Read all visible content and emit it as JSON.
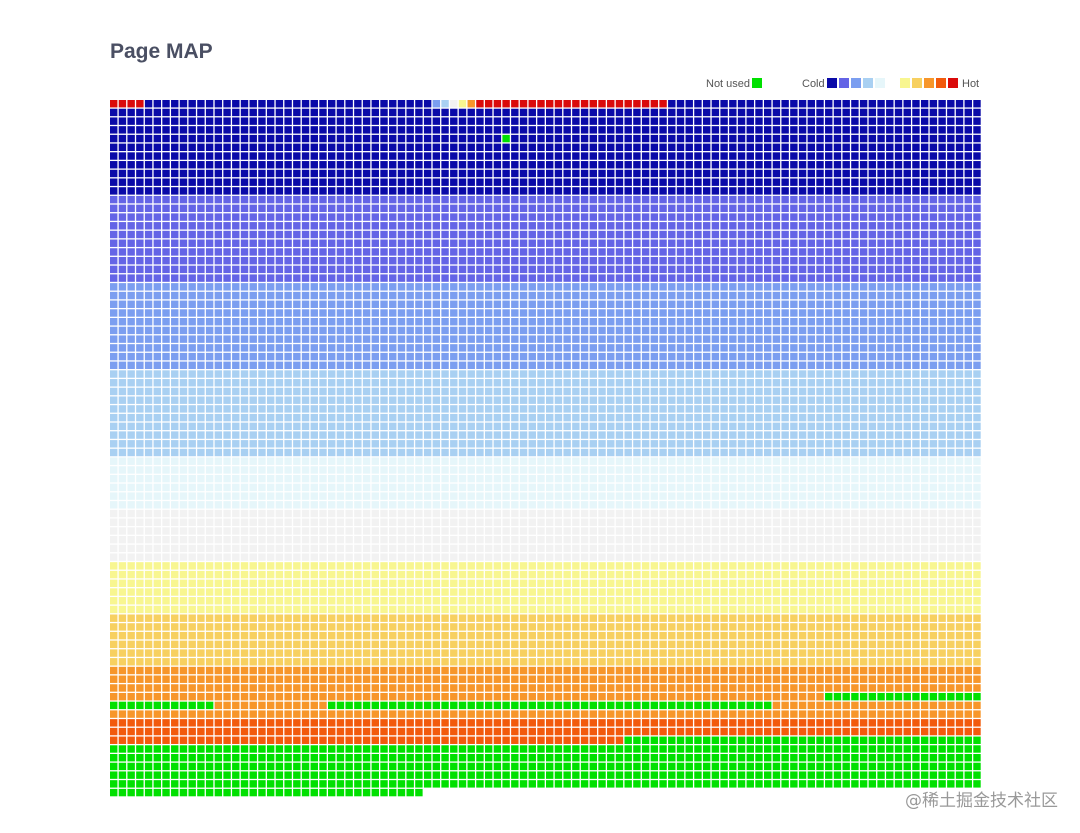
{
  "title": "Page MAP",
  "legend": {
    "not_used_label": "Not used",
    "cold_label": "Cold",
    "hot_label": "Hot",
    "not_used_color": "#00e000",
    "cold_colors": [
      "#0a0aa8",
      "#6464e6",
      "#7b9ef0",
      "#a9d0f2",
      "#e6f6fa"
    ],
    "hot_colors": [
      "#f8f690",
      "#f7d060",
      "#f7962a",
      "#f25a0c",
      "#da0a0a"
    ]
  },
  "watermark": "@稀土掘金技术社区",
  "chart_data": {
    "type": "heatmap",
    "title": "Page MAP",
    "columns": 100,
    "rows": 80,
    "legend_position": "top-right",
    "levels": [
      "not-used",
      "cold-1",
      "cold-2",
      "cold-3",
      "cold-4",
      "cold-5",
      "neutral",
      "hot-1",
      "hot-2",
      "hot-3",
      "hot-4",
      "hot-5"
    ],
    "level_colors": {
      "not-used": "#00e000",
      "cold-1": "#0a0aa8",
      "cold-2": "#6464e6",
      "cold-3": "#7b9ef0",
      "cold-4": "#a9d0f2",
      "cold-5": "#e6f6fa",
      "neutral": "#f2f2f2",
      "hot-1": "#f8f690",
      "hot-2": "#f7d060",
      "hot-3": "#f7962a",
      "hot-4": "#f25a0c",
      "hot-5": "#da0a0a"
    },
    "first_row_runs": [
      [
        "hot-5",
        4
      ],
      [
        "cold-1",
        33
      ],
      [
        "cold-3",
        1
      ],
      [
        "cold-4",
        1
      ],
      [
        "neutral",
        1
      ],
      [
        "hot-1",
        1
      ],
      [
        "hot-3",
        1
      ],
      [
        "hot-5",
        22
      ],
      [
        "cold-1",
        36
      ]
    ],
    "exceptions": [
      [
        4,
        45,
        "not-used"
      ]
    ],
    "band_sequence": [
      [
        "cold-1",
        1000
      ],
      [
        "cold-2",
        1000
      ],
      [
        "cold-3",
        1000
      ],
      [
        "cold-4",
        1000
      ],
      [
        "cold-5",
        600
      ],
      [
        "neutral",
        600
      ],
      [
        "hot-1",
        600
      ],
      [
        "hot-2",
        600
      ],
      [
        "hot-3",
        600
      ],
      [
        "hot-4",
        600
      ],
      [
        "hot-5",
        600
      ],
      [
        "hot-5",
        500
      ],
      [
        "not-used",
        600
      ],
      [
        "hot-5",
        200
      ]
    ],
    "green_runs": [
      [
        68,
        82,
        100
      ],
      [
        69,
        0,
        12
      ],
      [
        69,
        25,
        76
      ],
      [
        73,
        59,
        60
      ],
      [
        73,
        60,
        100
      ],
      [
        74,
        0,
        100
      ],
      [
        75,
        0,
        100
      ],
      [
        76,
        0,
        100
      ],
      [
        77,
        0,
        100
      ],
      [
        78,
        0,
        100
      ],
      [
        79,
        0,
        36
      ]
    ],
    "cells_total": 7936
  }
}
